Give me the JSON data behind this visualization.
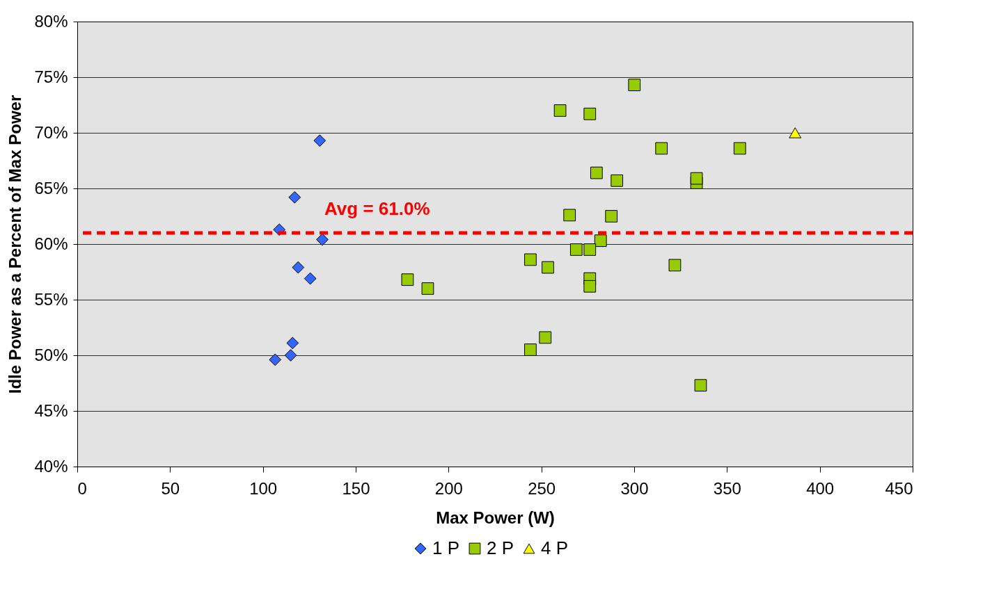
{
  "chart_data": {
    "type": "scatter",
    "xlabel": "Max Power (W)",
    "ylabel": "Idle Power as a Percent of Max Power",
    "xlim": [
      0,
      450
    ],
    "xticks": [
      0,
      50,
      100,
      150,
      200,
      250,
      300,
      350,
      400,
      450
    ],
    "ylim": [
      40,
      80
    ],
    "yticks": [
      {
        "value": 40,
        "label": "40%"
      },
      {
        "value": 45,
        "label": "45%"
      },
      {
        "value": 50,
        "label": "50%"
      },
      {
        "value": 55,
        "label": "55%"
      },
      {
        "value": 60,
        "label": "60%"
      },
      {
        "value": 65,
        "label": "65%"
      },
      {
        "value": 70,
        "label": "70%"
      },
      {
        "value": 75,
        "label": "75%"
      },
      {
        "value": 80,
        "label": "80%"
      }
    ],
    "grid": "y",
    "legend": "bottom",
    "ref_lines": [
      {
        "axis": "y",
        "value": 61.0,
        "label": "Avg = 61.0%",
        "color": "#ff0000",
        "line_style": "dashed"
      }
    ],
    "series": [
      {
        "name": "1 P",
        "color": "#3366ff",
        "marker": "diamond",
        "x": [
          130.6,
          117.1,
          108.8,
          132,
          119,
          125.5,
          116,
          115,
          106.6
        ],
        "values": [
          69.3,
          64.2,
          61.3,
          60.4,
          57.9,
          56.9,
          51.1,
          50.0,
          49.6
        ]
      },
      {
        "name": "2 P",
        "color": "#99cc00",
        "marker": "square",
        "x": [
          300.1,
          260.1,
          276.1,
          314.7,
          356.9,
          279.7,
          333.6,
          333.6,
          290.7,
          265.2,
          287.7,
          281.9,
          268.8,
          276.1,
          244.1,
          253.5,
          321.9,
          177.9,
          276.1,
          276.1,
          188.8,
          252.1,
          244.1,
          335.8
        ],
        "values": [
          74.3,
          72.0,
          71.7,
          68.6,
          68.6,
          66.4,
          65.5,
          65.9,
          65.7,
          62.6,
          62.5,
          60.3,
          59.5,
          59.5,
          58.6,
          57.9,
          58.1,
          56.8,
          56.9,
          56.2,
          56.0,
          51.6,
          50.5,
          47.3
        ]
      },
      {
        "name": "4 P",
        "color": "#ffff00",
        "marker": "triangle",
        "x": [
          386.7
        ],
        "values": [
          70.0
        ]
      }
    ]
  }
}
